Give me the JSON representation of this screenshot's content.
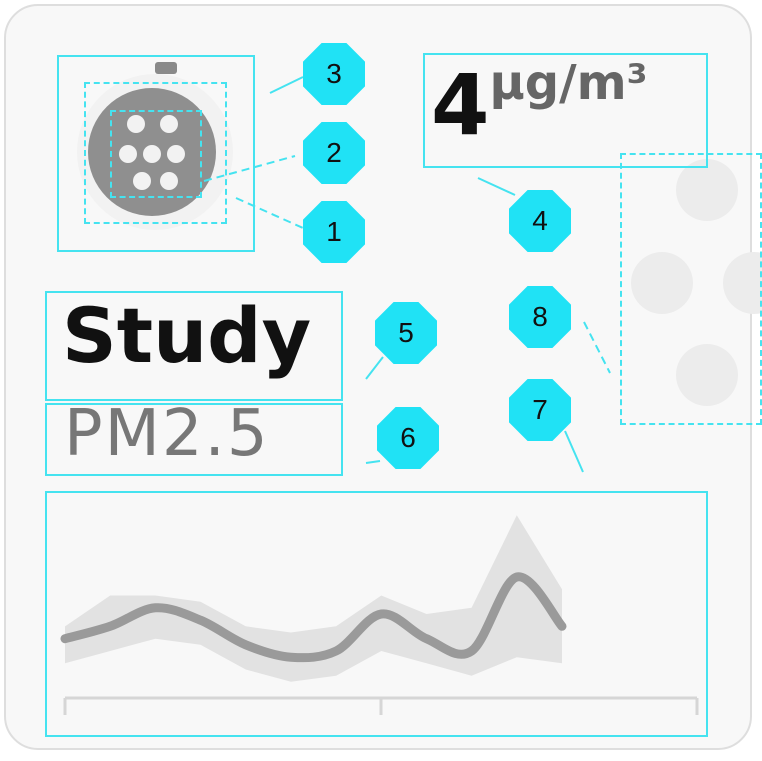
{
  "callouts": [
    "3",
    "2",
    "1",
    "4",
    "5",
    "6",
    "8",
    "7"
  ],
  "reading": {
    "value": "4",
    "unit": "µg/m³"
  },
  "title": "Study",
  "subtitle": "PM2.5",
  "icons": {
    "sensor": "air-sensor-icon"
  },
  "colors": {
    "highlight": "#45e3f0",
    "badge": "#20e2f5",
    "chart_band": "#e2e2e2",
    "chart_line": "#9a9a9a"
  },
  "chart_data": {
    "type": "area",
    "title": "",
    "xlabel": "",
    "ylabel": "",
    "series": [
      {
        "values": [
          8,
          10,
          13,
          11,
          7,
          5,
          6,
          12,
          8,
          6,
          18,
          10
        ]
      }
    ],
    "band": {
      "lower": [
        4,
        6,
        8,
        7,
        3,
        1,
        2,
        6,
        4,
        2,
        5,
        4
      ],
      "upper": [
        10,
        15,
        15,
        14,
        10,
        9,
        10,
        15,
        12,
        13,
        28,
        16
      ]
    },
    "ylim": [
      0,
      30
    ],
    "grid": false
  }
}
